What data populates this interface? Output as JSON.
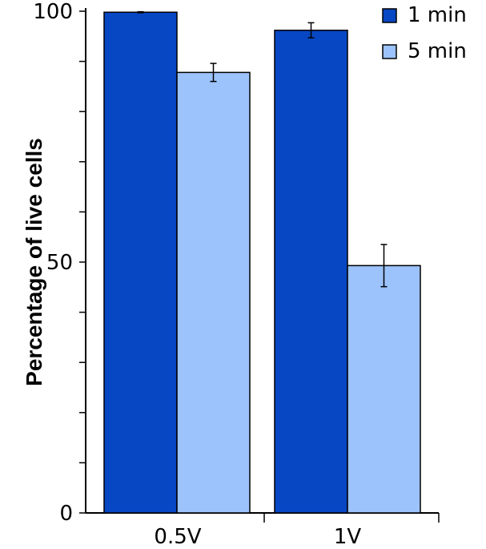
{
  "chart_data": {
    "type": "bar",
    "title": "",
    "xlabel": "",
    "ylabel": "Percentage of live cells",
    "categories": [
      "0.5V",
      "1V"
    ],
    "series": [
      {
        "name": "1 min",
        "color": "#0747c3",
        "values": [
          99.8,
          96.2
        ],
        "errors": [
          0.1,
          1.5
        ]
      },
      {
        "name": "5 min",
        "color": "#9cc3fb",
        "values": [
          87.8,
          49.3
        ],
        "errors": [
          1.8,
          4.2
        ]
      }
    ],
    "ylim": [
      0,
      100
    ],
    "yticks": [
      0,
      50,
      100
    ],
    "ytick_labels": [
      "0",
      "50",
      "100"
    ],
    "legend_position": "top-right",
    "grid": false
  }
}
